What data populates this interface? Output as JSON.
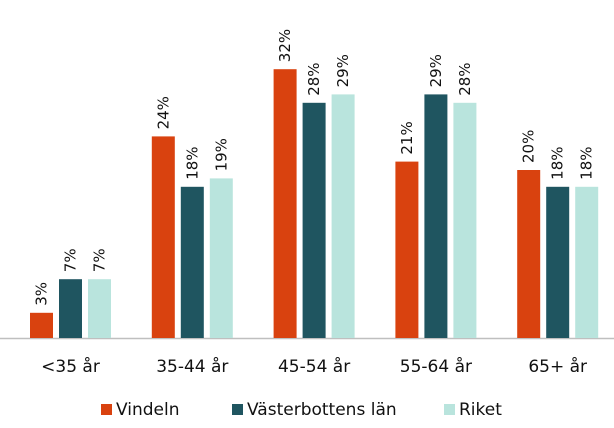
{
  "chart_data": {
    "type": "bar",
    "categories": [
      "<35 år",
      "35-44 år",
      "45-54 år",
      "55-64 år",
      "65+ år"
    ],
    "series": [
      {
        "name": "Vindeln",
        "color": "#d9420f",
        "label_color": "#d9420f",
        "values": [
          3,
          24,
          32,
          21,
          20
        ],
        "value_labels": [
          "3%",
          "24%",
          "32%",
          "21%",
          "20%"
        ]
      },
      {
        "name": "Västerbottens län",
        "color": "#1f5560",
        "label_color": "#1f5560",
        "values": [
          7,
          18,
          28,
          29,
          18
        ],
        "value_labels": [
          "7%",
          "18%",
          "28%",
          "29%",
          "18%"
        ]
      },
      {
        "name": "Riket",
        "color": "#b9e4dd",
        "label_color": "#4e9995",
        "values": [
          7,
          19,
          29,
          28,
          18
        ],
        "value_labels": [
          "7%",
          "19%",
          "29%",
          "28%",
          "18%"
        ]
      }
    ],
    "legend": "bottom"
  }
}
